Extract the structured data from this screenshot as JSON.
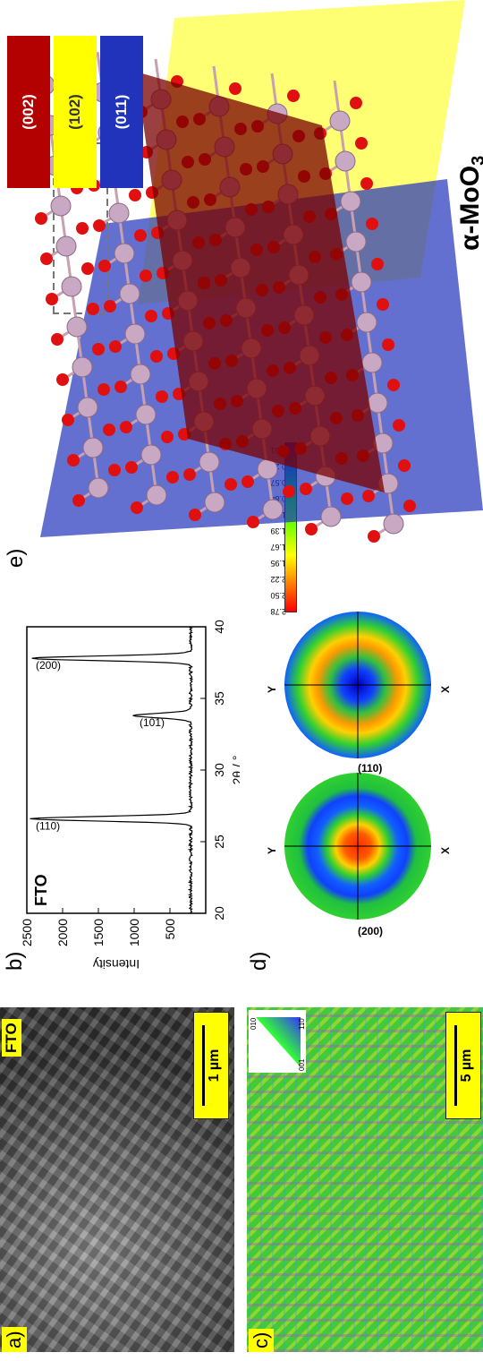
{
  "panels": {
    "a": {
      "letter": "a)",
      "tag": "FTO",
      "scale": "1 µm"
    },
    "b": {
      "letter": "b)",
      "tag": "FTO"
    },
    "c": {
      "letter": "c)",
      "scale": "5 µm",
      "ipf_labels": [
        "001",
        "110",
        "010"
      ]
    },
    "d": {
      "letter": "d)",
      "poles": [
        "(200)",
        "(110)"
      ],
      "axis_x": "X",
      "axis_y": "Y"
    },
    "e": {
      "letter": "e)",
      "material": "α-MoO",
      "material_sub": "3"
    }
  },
  "colorbar": {
    "ticks": [
      "2.78",
      "2.50",
      "2.22",
      "1.95",
      "1.67",
      "1.39",
      "1.12",
      "0.84",
      "0.57",
      "0.29",
      "0.01"
    ],
    "colors": [
      "#ff0000",
      "#ffff00",
      "#00ff00",
      "#0000ff"
    ]
  },
  "planes": [
    {
      "label": "(002)",
      "color": "#b30000"
    },
    {
      "label": "(102)",
      "color": "#ffff00"
    },
    {
      "label": "(011)",
      "color": "#2233bb"
    }
  ],
  "chart_data": {
    "type": "line",
    "xlabel": "2θ / °",
    "ylabel": "Intensity",
    "xlim": [
      20,
      40
    ],
    "ylim": [
      0,
      2500
    ],
    "xticks": [
      "20",
      "25",
      "30",
      "35",
      "40"
    ],
    "yticks": [
      "500",
      "1000",
      "1500",
      "2000",
      "2500"
    ],
    "peaks": [
      {
        "label": "(110)",
        "x": 26.6,
        "y": 2450
      },
      {
        "label": "(101)",
        "x": 33.8,
        "y": 1000
      },
      {
        "label": "(200)",
        "x": 37.8,
        "y": 2450
      }
    ],
    "baseline": 210,
    "peak_width": 0.22
  }
}
